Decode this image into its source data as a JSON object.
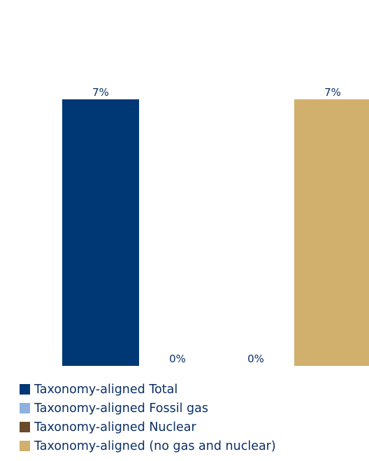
{
  "chart_data": {
    "type": "bar",
    "categories": [
      ""
    ],
    "series": [
      {
        "name": "Taxonomy-aligned Total",
        "color": "#003876",
        "values": [
          7
        ],
        "label": "7%"
      },
      {
        "name": "Taxonomy-aligned Fossil gas",
        "color": "#8fb1e0",
        "values": [
          0
        ],
        "label": "0%"
      },
      {
        "name": "Taxonomy-aligned Nuclear",
        "color": "#6b4a2b",
        "values": [
          0
        ],
        "label": "0%"
      },
      {
        "name": "Taxonomy-aligned (no gas and nuclear)",
        "color": "#d1b06d",
        "values": [
          7
        ],
        "label": "7%"
      }
    ],
    "title": "",
    "xlabel": "",
    "ylabel": "",
    "ylim": [
      0,
      7
    ],
    "grid": false,
    "legend_position": "bottom-left"
  }
}
